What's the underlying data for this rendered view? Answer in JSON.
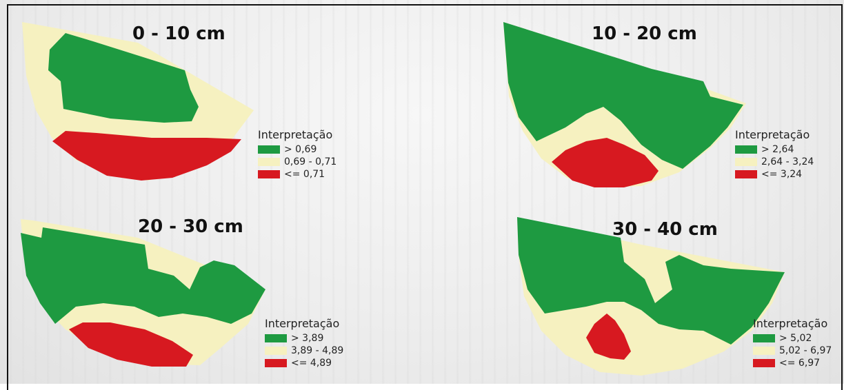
{
  "colors": {
    "green": "#1e9a41",
    "yellow": "#f6f1c0",
    "red": "#d71920"
  },
  "title_fragment": "",
  "panels": [
    {
      "depth": "0 - 10 cm",
      "legend": {
        "title": "Interpretação",
        "items": [
          {
            "label": "> 0,69",
            "color": "green"
          },
          {
            "label": "0,69 - 0,71",
            "color": "yellow"
          },
          {
            "label": "<= 0,71",
            "color": "red"
          }
        ]
      }
    },
    {
      "depth": "10 - 20 cm",
      "legend": {
        "title": "Interpretação",
        "items": [
          {
            "label": "> 2,64",
            "color": "green"
          },
          {
            "label": "2,64 - 3,24",
            "color": "yellow"
          },
          {
            "label": "<= 3,24",
            "color": "red"
          }
        ]
      }
    },
    {
      "depth": "20 - 30 cm",
      "legend": {
        "title": "Interpretação",
        "items": [
          {
            "label": "> 3,89",
            "color": "green"
          },
          {
            "label": "3,89 - 4,89",
            "color": "yellow"
          },
          {
            "label": "<= 4,89",
            "color": "red"
          }
        ]
      }
    },
    {
      "depth": "30 - 40 cm",
      "legend": {
        "title": "Interpretação",
        "items": [
          {
            "label": "> 5,02",
            "color": "green"
          },
          {
            "label": "5,02 - 6,97",
            "color": "yellow"
          },
          {
            "label": "<= 6,97",
            "color": "red"
          }
        ]
      }
    }
  ]
}
